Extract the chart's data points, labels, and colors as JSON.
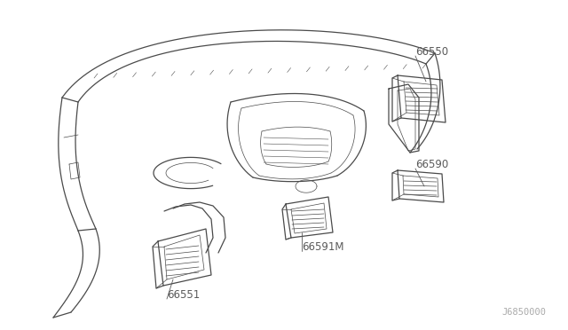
{
  "background_color": "#ffffff",
  "line_color": "#4a4a4a",
  "label_color": "#5a5a5a",
  "watermark_color": "#aaaaaa",
  "watermark": "J6850000",
  "fig_width": 6.4,
  "fig_height": 3.72,
  "dpi": 100,
  "border_color": "#cccccc"
}
